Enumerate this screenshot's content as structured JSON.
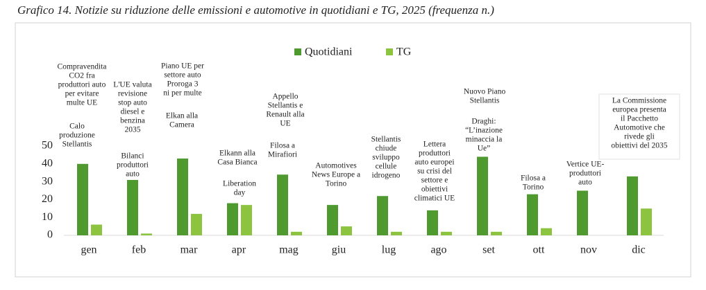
{
  "chart_data": {
    "type": "bar",
    "title": "Grafico 14. Notizie su riduzione delle emissioni e automotive in quotidiani e TG, 2025 (frequenza n.)",
    "categories": [
      "gen",
      "feb",
      "mar",
      "apr",
      "mag",
      "giu",
      "lug",
      "ago",
      "set",
      "ott",
      "nov",
      "dic"
    ],
    "series": [
      {
        "name": "Quotidiani",
        "color": "#4e9a2f",
        "values": [
          40,
          31,
          43,
          18,
          34,
          17,
          22,
          14,
          44,
          23,
          25,
          33
        ]
      },
      {
        "name": "TG",
        "color": "#8cc43f",
        "values": [
          6,
          1,
          12,
          17,
          2,
          5,
          2,
          2,
          2,
          4,
          0,
          15
        ]
      }
    ],
    "ylim": [
      0,
      50
    ],
    "yticks": [
      0,
      10,
      20,
      30,
      40,
      50
    ],
    "legend": "top",
    "annotations": [
      [
        "Compravendita",
        "CO2 fra",
        "produttori auto",
        "per evitare",
        "multe UE"
      ],
      [
        "Calo",
        "produzione",
        "Stellantis"
      ],
      [
        "L'UE valuta",
        "revisione",
        "stop auto",
        "diesel e",
        "benzina",
        "2035"
      ],
      [
        "Bilanci",
        "produttori",
        "auto"
      ],
      [
        "Piano UE per",
        "settore auto",
        "Proroga 3",
        "ni per multe"
      ],
      [
        "Elkan alla",
        "Camera"
      ],
      [
        "Elkann alla",
        "Casa Bianca"
      ],
      [
        "Liberation",
        "day"
      ],
      [
        "Appello",
        "Stellantis e",
        "Renault alla",
        "UE"
      ],
      [
        "Filosa a",
        "Mirafiori"
      ],
      [
        "Automotives",
        "News Europe a",
        "Torino"
      ],
      [
        "Stellantis",
        "chiude",
        "sviluppo",
        "cellule",
        "idrogeno"
      ],
      [
        "Lettera",
        "produttori",
        "auto europei",
        "su crisi del",
        "settore e",
        "obiettivi",
        "climatici UE"
      ],
      [
        "Nuovo Piano",
        "Stellantis"
      ],
      [
        "Draghi:",
        "“L’inazione",
        "minaccia la",
        "Ue”"
      ],
      [
        "Filosa a",
        "Torino"
      ],
      [
        "Vertice UE-",
        "produttori",
        "auto"
      ],
      [
        "La Commissione",
        "europea presenta",
        "il Pacchetto",
        "Automotive che",
        "rivede gli",
        "obiettivi del 2035"
      ]
    ]
  }
}
